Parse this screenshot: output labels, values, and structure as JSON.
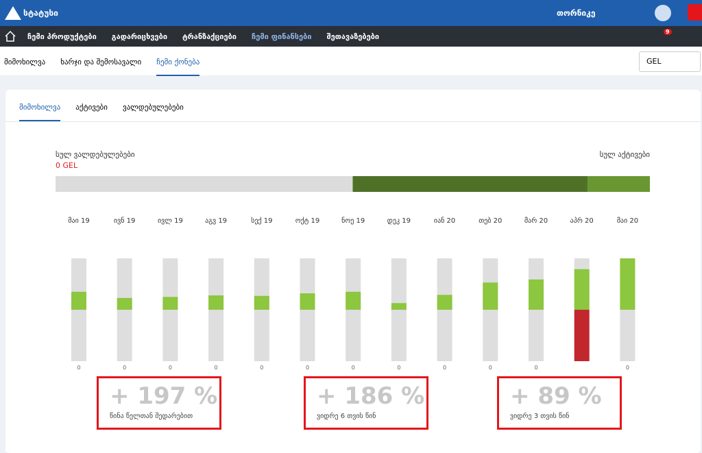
{
  "header": {
    "logo": "სტატუსი",
    "user": "თორნიკე"
  },
  "nav": {
    "items": [
      "ჩემი პროდუქტები",
      "გადარიცხვები",
      "ტრანზაქციები",
      "ჩემი ფინანსები",
      "შეთავაზებები"
    ],
    "badge": "9"
  },
  "subnav": {
    "tabs": [
      "მიმოხილვა",
      "ხარჯი და შემოსავალი",
      "ჩემი ქონება"
    ],
    "currency": "GEL"
  },
  "card": {
    "tabs": [
      "მიმოხილვა",
      "აქტივები",
      "ვალდებულებები"
    ],
    "liabilities_label": "სულ ვალდებულებები",
    "liabilities_value": "0 GEL",
    "assets_label": "სულ აქტივები",
    "balance_bar": {
      "values": [
        50,
        39.5,
        10.5
      ],
      "colors": [
        "#dcdcdc",
        "#4e7127",
        "#6a9732"
      ]
    },
    "monthly_chart": {
      "type": "bar",
      "categories": [
        "მაი 19",
        "ივნ 19",
        "ივლ 19",
        "აგვ 19",
        "სექ 19",
        "ოქტ 19",
        "ნოე 19",
        "დეკ 19",
        "იან 20",
        "თებ 20",
        "მარ 20",
        "აპრ 20",
        "მაი 20"
      ],
      "ylim": [
        -100,
        100
      ],
      "series": [
        {
          "color": "#8dc63f",
          "values": [
            35,
            23,
            25,
            28,
            27,
            32,
            35,
            13,
            29,
            53,
            59,
            79,
            100
          ]
        },
        {
          "color": "#c1272d",
          "values": [
            0,
            0,
            0,
            0,
            0,
            0,
            0,
            0,
            0,
            0,
            0,
            -100,
            0
          ]
        }
      ],
      "bottom_labels": [
        "0",
        "0",
        "0",
        "0",
        "0",
        "0",
        "0",
        "0",
        "0",
        "0",
        "0",
        null,
        "0"
      ]
    },
    "summaries": [
      {
        "value": "+ 197 %",
        "label": "წინა წელთან შედარებით"
      },
      {
        "value": "+ 186 %",
        "label": "ვიდრე 6 თვის წინ"
      },
      {
        "value": "+ 89 %",
        "label": "ვიდრე 3 თვის წინ"
      }
    ]
  }
}
